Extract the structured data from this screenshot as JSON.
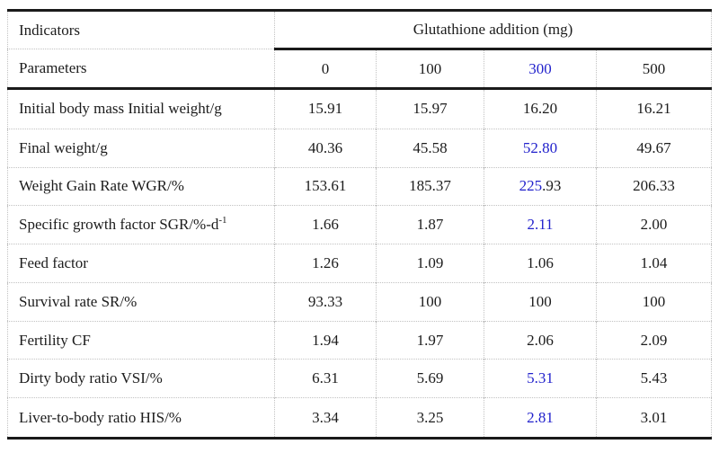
{
  "page": {
    "background": "#ffffff"
  },
  "table": {
    "colors": {
      "blue": "#2222cc",
      "ink": "#1a1a1a",
      "grid": "#c2c2c2",
      "text": "#1c1c1c"
    },
    "header": {
      "indicators_label": "Indicators",
      "parameters_label": "Parameters",
      "group_label": "Glutathione addition (mg)",
      "columns": [
        {
          "text": "0",
          "color": "black"
        },
        {
          "text": "100",
          "color": "black"
        },
        {
          "text": "300",
          "color": "blue"
        },
        {
          "text": "500",
          "color": "black"
        }
      ]
    },
    "rows": [
      {
        "label": "Initial body mass Initial weight/g",
        "sup": "",
        "values": [
          {
            "segments": [
              {
                "text": "15.91",
                "color": "black"
              }
            ]
          },
          {
            "segments": [
              {
                "text": "15.97",
                "color": "black"
              }
            ]
          },
          {
            "segments": [
              {
                "text": "16.20",
                "color": "black"
              }
            ]
          },
          {
            "segments": [
              {
                "text": "16.21",
                "color": "black"
              }
            ]
          }
        ]
      },
      {
        "label": "Final weight/g",
        "sup": "",
        "values": [
          {
            "segments": [
              {
                "text": "40.36",
                "color": "black"
              }
            ]
          },
          {
            "segments": [
              {
                "text": "45.58",
                "color": "black"
              }
            ]
          },
          {
            "segments": [
              {
                "text": "52.80",
                "color": "blue"
              }
            ]
          },
          {
            "segments": [
              {
                "text": "49.67",
                "color": "black"
              }
            ]
          }
        ]
      },
      {
        "label": "Weight Gain Rate WGR/%",
        "sup": "",
        "values": [
          {
            "segments": [
              {
                "text": "153.61",
                "color": "black"
              }
            ]
          },
          {
            "segments": [
              {
                "text": "185.37",
                "color": "black"
              }
            ]
          },
          {
            "segments": [
              {
                "text": "225",
                "color": "blue"
              },
              {
                "text": ".93",
                "color": "black"
              }
            ]
          },
          {
            "segments": [
              {
                "text": "206.33",
                "color": "black"
              }
            ]
          }
        ]
      },
      {
        "label": "Specific growth factor SGR/%-d",
        "sup": "-1",
        "values": [
          {
            "segments": [
              {
                "text": "1.66",
                "color": "black"
              }
            ]
          },
          {
            "segments": [
              {
                "text": "1.87",
                "color": "black"
              }
            ]
          },
          {
            "segments": [
              {
                "text": "2.11",
                "color": "blue"
              }
            ]
          },
          {
            "segments": [
              {
                "text": "2.00",
                "color": "black"
              }
            ]
          }
        ]
      },
      {
        "label": "Feed factor",
        "sup": "",
        "values": [
          {
            "segments": [
              {
                "text": "1.26",
                "color": "black"
              }
            ]
          },
          {
            "segments": [
              {
                "text": "1.09",
                "color": "black"
              }
            ]
          },
          {
            "segments": [
              {
                "text": "1.06",
                "color": "black"
              }
            ]
          },
          {
            "segments": [
              {
                "text": "1.04",
                "color": "black"
              }
            ]
          }
        ]
      },
      {
        "label": "Survival rate SR/%",
        "sup": "",
        "values": [
          {
            "segments": [
              {
                "text": "93.33",
                "color": "black"
              }
            ]
          },
          {
            "segments": [
              {
                "text": "100",
                "color": "black"
              }
            ]
          },
          {
            "segments": [
              {
                "text": "100",
                "color": "black"
              }
            ]
          },
          {
            "segments": [
              {
                "text": "100",
                "color": "black"
              }
            ]
          }
        ]
      },
      {
        "label": "Fertility CF",
        "sup": "",
        "values": [
          {
            "segments": [
              {
                "text": "1.94",
                "color": "black"
              }
            ]
          },
          {
            "segments": [
              {
                "text": "1.97",
                "color": "black"
              }
            ]
          },
          {
            "segments": [
              {
                "text": "2.06",
                "color": "black"
              }
            ]
          },
          {
            "segments": [
              {
                "text": "2.09",
                "color": "black"
              }
            ]
          }
        ]
      },
      {
        "label": "Dirty body ratio VSI/%",
        "sup": "",
        "values": [
          {
            "segments": [
              {
                "text": "6.31",
                "color": "black"
              }
            ]
          },
          {
            "segments": [
              {
                "text": "5.69",
                "color": "black"
              }
            ]
          },
          {
            "segments": [
              {
                "text": "5.31",
                "color": "blue"
              }
            ]
          },
          {
            "segments": [
              {
                "text": "5.43",
                "color": "black"
              }
            ]
          }
        ]
      },
      {
        "label": "Liver-to-body ratio HIS/%",
        "sup": "",
        "values": [
          {
            "segments": [
              {
                "text": "3.34",
                "color": "black"
              }
            ]
          },
          {
            "segments": [
              {
                "text": "3.25",
                "color": "black"
              }
            ]
          },
          {
            "segments": [
              {
                "text": "2.81",
                "color": "blue"
              }
            ]
          },
          {
            "segments": [
              {
                "text": "3.01",
                "color": "black"
              }
            ]
          }
        ]
      }
    ]
  }
}
